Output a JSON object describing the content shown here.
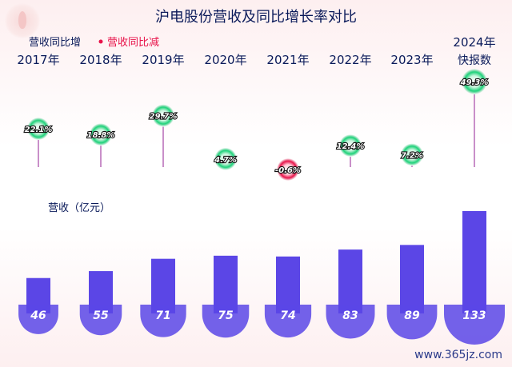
{
  "title": "沪电股份营收及同比增长率对比",
  "legend": {
    "increase": "营收同比增",
    "decrease": "营收同比减"
  },
  "revenue_label": "营收（亿元）",
  "watermark": "www.365jz.com",
  "colors": {
    "increase": "#1ed27a",
    "decrease": "#e8134a",
    "bar": "#5b46e6",
    "stem": "#c98fc9",
    "text": "#0a1a5a"
  },
  "chart_data": {
    "type": "bar",
    "title": "沪电股份营收及同比增长率对比",
    "categories": [
      "2017年",
      "2018年",
      "2019年",
      "2020年",
      "2021年",
      "2022年",
      "2023年",
      "2024年"
    ],
    "category_sub": [
      "",
      "",
      "",
      "",
      "",
      "",
      "",
      "快报数"
    ],
    "series": [
      {
        "name": "营收（亿元）",
        "values": [
          46,
          55,
          71,
          75,
          74,
          83,
          89,
          133
        ]
      },
      {
        "name": "营收同比增",
        "values": [
          22.1,
          18.8,
          29.7,
          4.7,
          -0.6,
          12.4,
          7.2,
          49.3
        ],
        "labels": [
          "22.1%",
          "18.8%",
          "29.7%",
          "4.7%",
          "-0.6%",
          "12.4%",
          "7.2%",
          "49.3%"
        ]
      }
    ],
    "legend": "top-left"
  }
}
